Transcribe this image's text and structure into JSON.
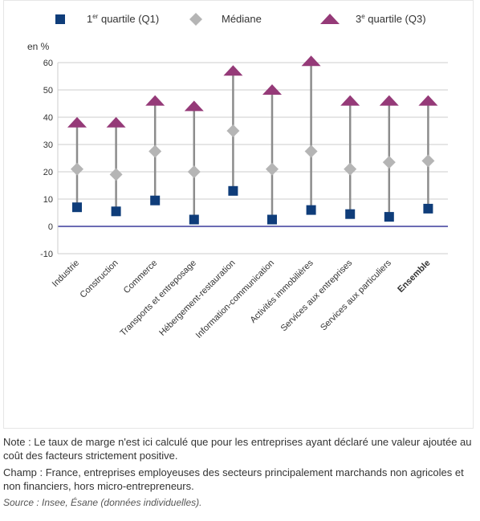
{
  "chart_data": {
    "type": "scatter",
    "ylabel": "en %",
    "ylim": [
      -10,
      60
    ],
    "yticks": [
      -10,
      0,
      10,
      20,
      30,
      40,
      50,
      60
    ],
    "grid": "horizontal",
    "legend_position": "top",
    "categories": [
      "Industrie",
      "Construction",
      "Commerce",
      "Transports et entreposage",
      "Hébergement-restauration",
      "Information-communication",
      "Activités immobilières",
      "Services aux entreprises",
      "Services aux particuliers",
      "Ensemble"
    ],
    "bold_category": "Ensemble",
    "legend": [
      {
        "marker": "square",
        "text": "1",
        "sup": "er",
        "rest": " quartile (Q1)"
      },
      {
        "marker": "diamond",
        "text": "Médiane",
        "sup": "",
        "rest": ""
      },
      {
        "marker": "triangle",
        "text": "3",
        "sup": "e",
        "rest": " quartile (Q3)"
      }
    ],
    "series": [
      {
        "name": "1er quartile (Q1)",
        "marker": "square",
        "color": "#0f3d7a",
        "values": [
          7,
          5.5,
          9.5,
          2.5,
          13,
          2.5,
          6,
          4.5,
          3.5,
          6.5
        ]
      },
      {
        "name": "Médiane",
        "marker": "diamond",
        "color": "#b5b5b5",
        "values": [
          21,
          19,
          27.5,
          20,
          35,
          21,
          27.5,
          21,
          23.5,
          24
        ]
      },
      {
        "name": "3e quartile (Q3)",
        "marker": "triangle",
        "color": "#953a78",
        "values": [
          38,
          38,
          46,
          44,
          57,
          50,
          60.5,
          46,
          46,
          46
        ]
      }
    ],
    "colors": {
      "range_line": "#8c8c8c",
      "grid": "#cccccc",
      "zero_axis": "#3b3b9c"
    }
  },
  "notes": {
    "note": "Note : Le taux de marge n'est ici calculé que pour les entreprises ayant déclaré une valeur ajoutée au coût des facteurs strictement positive.",
    "champ": "Champ : France, entreprises employeuses des secteurs principalement marchands non agricoles et non financiers, hors micro-entrepreneurs.",
    "source": "Source : Insee, Ésane (données individuelles)."
  }
}
